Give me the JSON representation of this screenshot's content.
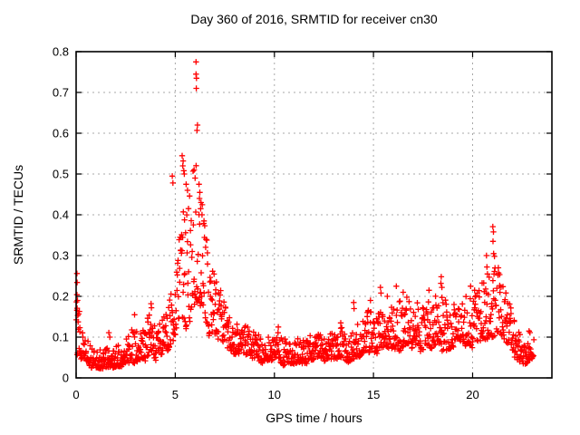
{
  "page": {
    "background": "#ffffff"
  },
  "chart_data": {
    "type": "scatter",
    "title": "Day 360 of 2016, SRMTID for receiver cn30",
    "xlabel": "GPS time / hours",
    "ylabel": "SRMTID / TECUs",
    "xlim": [
      0,
      24
    ],
    "ylim": [
      0,
      0.8
    ],
    "xticks": [
      {
        "v": 0,
        "label": "0"
      },
      {
        "v": 5,
        "label": "5"
      },
      {
        "v": 10,
        "label": "10"
      },
      {
        "v": 15,
        "label": "15"
      },
      {
        "v": 20,
        "label": "20"
      }
    ],
    "yticks": [
      {
        "v": 0.0,
        "label": "0"
      },
      {
        "v": 0.1,
        "label": "0.1"
      },
      {
        "v": 0.2,
        "label": "0.2"
      },
      {
        "v": 0.3,
        "label": "0.3"
      },
      {
        "v": 0.4,
        "label": "0.4"
      },
      {
        "v": 0.5,
        "label": "0.5"
      },
      {
        "v": 0.6,
        "label": "0.6"
      },
      {
        "v": 0.7,
        "label": "0.7"
      },
      {
        "v": 0.8,
        "label": "0.8"
      }
    ],
    "grid": {
      "visible": true,
      "color": "#a8a8a8",
      "style": "dashed"
    },
    "axis_color": "#000000",
    "legend": "none",
    "series": [
      {
        "name": "SRMTID",
        "marker": "plus",
        "color": "#ff0000",
        "envelope_t_lo_hi": [
          [
            0.0,
            0.05,
            0.26
          ],
          [
            0.12,
            0.05,
            0.21
          ],
          [
            0.3,
            0.045,
            0.13
          ],
          [
            0.6,
            0.035,
            0.1
          ],
          [
            1.0,
            0.025,
            0.075
          ],
          [
            1.4,
            0.022,
            0.065
          ],
          [
            1.8,
            0.028,
            0.08
          ],
          [
            2.2,
            0.03,
            0.085
          ],
          [
            2.6,
            0.035,
            0.095
          ],
          [
            3.0,
            0.04,
            0.14
          ],
          [
            3.3,
            0.05,
            0.13
          ],
          [
            3.6,
            0.05,
            0.16
          ],
          [
            3.8,
            0.055,
            0.17
          ],
          [
            4.05,
            0.04,
            0.11
          ],
          [
            4.3,
            0.055,
            0.15
          ],
          [
            4.6,
            0.07,
            0.18
          ],
          [
            4.8,
            0.08,
            0.21
          ],
          [
            5.0,
            0.1,
            0.26
          ],
          [
            5.2,
            0.12,
            0.34
          ],
          [
            5.4,
            0.14,
            0.42
          ],
          [
            5.6,
            0.15,
            0.44
          ],
          [
            5.8,
            0.17,
            0.48
          ],
          [
            6.0,
            0.18,
            0.52
          ],
          [
            6.15,
            0.18,
            0.55
          ],
          [
            6.3,
            0.16,
            0.48
          ],
          [
            6.5,
            0.14,
            0.38
          ],
          [
            6.8,
            0.12,
            0.31
          ],
          [
            7.0,
            0.1,
            0.26
          ],
          [
            7.3,
            0.09,
            0.21
          ],
          [
            7.6,
            0.07,
            0.17
          ],
          [
            8.0,
            0.06,
            0.14
          ],
          [
            8.5,
            0.055,
            0.125
          ],
          [
            9.0,
            0.05,
            0.12
          ],
          [
            9.6,
            0.04,
            0.11
          ],
          [
            10.2,
            0.045,
            0.12
          ],
          [
            10.7,
            0.03,
            0.085
          ],
          [
            11.1,
            0.035,
            0.09
          ],
          [
            11.6,
            0.04,
            0.115
          ],
          [
            12.0,
            0.045,
            0.1
          ],
          [
            12.5,
            0.045,
            0.11
          ],
          [
            13.0,
            0.045,
            0.11
          ],
          [
            13.4,
            0.05,
            0.125
          ],
          [
            13.7,
            0.04,
            0.1
          ],
          [
            14.0,
            0.05,
            0.16
          ],
          [
            14.3,
            0.05,
            0.13
          ],
          [
            14.7,
            0.06,
            0.17
          ],
          [
            15.0,
            0.06,
            0.16
          ],
          [
            15.4,
            0.07,
            0.18
          ],
          [
            15.8,
            0.07,
            0.19
          ],
          [
            16.2,
            0.07,
            0.19
          ],
          [
            16.6,
            0.08,
            0.2
          ],
          [
            17.0,
            0.07,
            0.17
          ],
          [
            17.5,
            0.08,
            0.2
          ],
          [
            18.0,
            0.07,
            0.18
          ],
          [
            18.4,
            0.08,
            0.23
          ],
          [
            18.8,
            0.07,
            0.18
          ],
          [
            19.2,
            0.08,
            0.19
          ],
          [
            19.6,
            0.09,
            0.21
          ],
          [
            20.0,
            0.08,
            0.2
          ],
          [
            20.4,
            0.09,
            0.22
          ],
          [
            20.8,
            0.1,
            0.26
          ],
          [
            21.1,
            0.11,
            0.3
          ],
          [
            21.4,
            0.1,
            0.25
          ],
          [
            21.8,
            0.08,
            0.2
          ],
          [
            22.2,
            0.05,
            0.13
          ],
          [
            22.6,
            0.03,
            0.1
          ],
          [
            22.9,
            0.04,
            0.11
          ],
          [
            23.1,
            0.05,
            0.1
          ]
        ],
        "outliers": [
          [
            0.04,
            0.256
          ],
          [
            0.05,
            0.234
          ],
          [
            0.04,
            0.204
          ],
          [
            0.07,
            0.19
          ],
          [
            0.05,
            0.171
          ],
          [
            0.08,
            0.153
          ],
          [
            1.65,
            0.111
          ],
          [
            1.7,
            0.1
          ],
          [
            2.95,
            0.155
          ],
          [
            3.78,
            0.182
          ],
          [
            3.8,
            0.172
          ],
          [
            4.85,
            0.495
          ],
          [
            4.88,
            0.478
          ],
          [
            5.35,
            0.545
          ],
          [
            5.4,
            0.532
          ],
          [
            5.38,
            0.52
          ],
          [
            5.43,
            0.508
          ],
          [
            5.46,
            0.5
          ],
          [
            5.55,
            0.475
          ],
          [
            5.62,
            0.46
          ],
          [
            5.95,
            0.51
          ],
          [
            6.0,
            0.49
          ],
          [
            6.05,
            0.775
          ],
          [
            6.05,
            0.745
          ],
          [
            6.07,
            0.735
          ],
          [
            6.06,
            0.71
          ],
          [
            6.12,
            0.62
          ],
          [
            6.1,
            0.607
          ],
          [
            6.2,
            0.475
          ],
          [
            6.24,
            0.455
          ],
          [
            6.22,
            0.44
          ],
          [
            6.3,
            0.43
          ],
          [
            6.28,
            0.415
          ],
          [
            6.35,
            0.4
          ],
          [
            6.45,
            0.385
          ],
          [
            10.2,
            0.125
          ],
          [
            13.35,
            0.135
          ],
          [
            14.0,
            0.185
          ],
          [
            14.02,
            0.17
          ],
          [
            14.85,
            0.19
          ],
          [
            15.35,
            0.222
          ],
          [
            15.38,
            0.208
          ],
          [
            15.7,
            0.2
          ],
          [
            16.15,
            0.225
          ],
          [
            16.5,
            0.21
          ],
          [
            17.8,
            0.215
          ],
          [
            18.42,
            0.248
          ],
          [
            18.4,
            0.232
          ],
          [
            18.45,
            0.222
          ],
          [
            19.9,
            0.225
          ],
          [
            20.1,
            0.215
          ],
          [
            20.7,
            0.3
          ],
          [
            20.72,
            0.272
          ],
          [
            20.75,
            0.255
          ],
          [
            21.02,
            0.371
          ],
          [
            21.05,
            0.358
          ],
          [
            21.03,
            0.335
          ],
          [
            21.06,
            0.305
          ],
          [
            21.1,
            0.298
          ],
          [
            21.3,
            0.27
          ],
          [
            21.28,
            0.252
          ],
          [
            22.85,
            0.115
          ]
        ],
        "generation": {
          "count": 1450,
          "seed": 7261,
          "t_max": 23.1,
          "power": 1.85,
          "wave": [
            [
              0.1,
              5.3,
              0.0
            ],
            [
              0.07,
              11.7,
              2.0
            ]
          ],
          "y_min_floor": 0.018
        }
      }
    ]
  }
}
